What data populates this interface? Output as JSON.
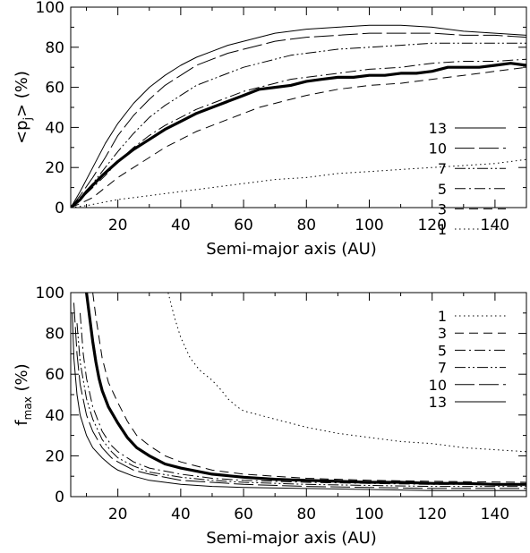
{
  "chart_data": [
    {
      "type": "line",
      "xlabel": "Semi-major axis (AU)",
      "ylabel_main": "<p",
      "ylabel_sub": "j",
      "ylabel_tail": "> (%)",
      "xlim": [
        5,
        150
      ],
      "ylim": [
        0,
        100
      ],
      "xticks": [
        20,
        40,
        60,
        80,
        100,
        120,
        140
      ],
      "yticks": [
        0,
        20,
        40,
        60,
        80,
        100
      ],
      "legend_position": "right",
      "series": [
        {
          "name": "13",
          "style": "solid",
          "width": 1,
          "x": [
            5,
            8,
            12,
            16,
            20,
            25,
            30,
            35,
            40,
            45,
            50,
            55,
            60,
            65,
            70,
            75,
            80,
            90,
            100,
            110,
            120,
            130,
            140,
            150
          ],
          "y": [
            0,
            8,
            20,
            32,
            42,
            52,
            60,
            66,
            71,
            75,
            78,
            81,
            83,
            85,
            87,
            88,
            89,
            90,
            91,
            91,
            90,
            88,
            87,
            86
          ]
        },
        {
          "name": "10",
          "style": "longdash",
          "width": 1,
          "x": [
            5,
            8,
            12,
            16,
            20,
            25,
            30,
            35,
            40,
            45,
            50,
            55,
            60,
            65,
            70,
            75,
            80,
            90,
            100,
            110,
            120,
            130,
            140,
            150
          ],
          "y": [
            0,
            6,
            15,
            25,
            36,
            46,
            54,
            61,
            66,
            71,
            74,
            77,
            79,
            81,
            83,
            84,
            85,
            86,
            87,
            87,
            87,
            86,
            86,
            85
          ]
        },
        {
          "name": "7",
          "style": "dashdotdot",
          "width": 1,
          "x": [
            5,
            8,
            12,
            16,
            20,
            25,
            30,
            35,
            40,
            45,
            50,
            55,
            60,
            65,
            70,
            75,
            80,
            90,
            100,
            110,
            120,
            130,
            140,
            150
          ],
          "y": [
            0,
            5,
            12,
            20,
            28,
            37,
            45,
            51,
            56,
            61,
            64,
            67,
            70,
            72,
            74,
            76,
            77,
            79,
            80,
            81,
            82,
            82,
            82,
            82
          ]
        },
        {
          "name": "5",
          "style": "dashdot",
          "width": 1,
          "x": [
            5,
            8,
            12,
            16,
            20,
            25,
            30,
            35,
            40,
            45,
            50,
            55,
            60,
            65,
            70,
            75,
            80,
            90,
            100,
            110,
            120,
            130,
            140,
            150
          ],
          "y": [
            0,
            4,
            10,
            16,
            23,
            30,
            36,
            41,
            45,
            49,
            52,
            55,
            58,
            60,
            62,
            64,
            65,
            67,
            69,
            70,
            72,
            73,
            73,
            74
          ]
        },
        {
          "name": "3",
          "style": "dash",
          "width": 1,
          "x": [
            5,
            8,
            12,
            16,
            20,
            25,
            30,
            35,
            40,
            45,
            50,
            55,
            60,
            65,
            70,
            75,
            80,
            90,
            100,
            110,
            120,
            130,
            140,
            150
          ],
          "y": [
            0,
            2,
            5,
            10,
            15,
            20,
            25,
            30,
            34,
            38,
            41,
            44,
            47,
            50,
            52,
            54,
            56,
            59,
            61,
            62,
            64,
            66,
            68,
            70
          ]
        },
        {
          "name": "1",
          "style": "dot",
          "width": 1,
          "x": [
            5,
            10,
            20,
            30,
            40,
            50,
            60,
            70,
            80,
            90,
            100,
            110,
            120,
            130,
            140,
            150
          ],
          "y": [
            0,
            1,
            4,
            6,
            8,
            10,
            12,
            14,
            15,
            17,
            18,
            19,
            20,
            21,
            22,
            24
          ]
        },
        {
          "name": "",
          "style": "solid",
          "width": 3.2,
          "x": [
            5,
            8,
            10,
            15,
            20,
            25,
            30,
            35,
            40,
            45,
            50,
            55,
            60,
            65,
            70,
            75,
            80,
            85,
            90,
            95,
            100,
            105,
            110,
            115,
            120,
            125,
            130,
            135,
            140,
            145,
            150
          ],
          "y": [
            0,
            4,
            8,
            16,
            23,
            29,
            34,
            39,
            43,
            47,
            50,
            53,
            56,
            59,
            60,
            61,
            63,
            64,
            65,
            65,
            66,
            66,
            67,
            67,
            68,
            70,
            70,
            70,
            71,
            72,
            71
          ]
        }
      ]
    },
    {
      "type": "line",
      "xlabel": "Semi-major axis (AU)",
      "ylabel_main": "f",
      "ylabel_sub": "max",
      "ylabel_tail": " (%)",
      "xlim": [
        5,
        150
      ],
      "ylim": [
        0,
        100
      ],
      "xticks": [
        20,
        40,
        60,
        80,
        100,
        120,
        140
      ],
      "yticks": [
        0,
        20,
        40,
        60,
        80,
        100
      ],
      "legend_position": "top-right",
      "series": [
        {
          "name": "1",
          "style": "dot",
          "width": 1,
          "x": [
            36,
            38,
            40,
            43,
            46,
            50,
            53,
            55,
            58,
            60,
            65,
            70,
            80,
            90,
            100,
            110,
            120,
            130,
            140,
            150
          ],
          "y": [
            100,
            88,
            78,
            68,
            62,
            57,
            52,
            48,
            44,
            42,
            40,
            38,
            34,
            31,
            29,
            27,
            26,
            24,
            23,
            22
          ]
        },
        {
          "name": "3",
          "style": "dash",
          "width": 1,
          "x": [
            12,
            13,
            14,
            15,
            17,
            20,
            23,
            26,
            30,
            35,
            40,
            50,
            60,
            70,
            80,
            100,
            120,
            150
          ],
          "y": [
            100,
            88,
            78,
            68,
            56,
            46,
            37,
            30,
            25,
            20,
            17,
            13,
            11,
            10,
            9,
            8,
            7.5,
            7
          ]
        },
        {
          "name": "5",
          "style": "dashdot",
          "width": 1,
          "x": [
            8,
            9,
            10,
            12,
            15,
            18,
            20,
            25,
            30,
            40,
            50,
            60,
            80,
            100,
            120,
            150
          ],
          "y": [
            90,
            70,
            58,
            44,
            32,
            25,
            22,
            17,
            14,
            11,
            9,
            8,
            7,
            6.5,
            6,
            6
          ]
        },
        {
          "name": "7",
          "style": "dashdotdot",
          "width": 1,
          "x": [
            7,
            8,
            10,
            12,
            15,
            18,
            20,
            25,
            30,
            40,
            50,
            60,
            80,
            100,
            120,
            150
          ],
          "y": [
            85,
            66,
            48,
            38,
            28,
            22,
            19,
            15,
            12,
            9.5,
            8,
            7,
            6,
            5.5,
            5,
            5
          ]
        },
        {
          "name": "10",
          "style": "longdash",
          "width": 1,
          "x": [
            6,
            7,
            8,
            10,
            12,
            15,
            18,
            20,
            25,
            30,
            40,
            50,
            60,
            80,
            100,
            120,
            150
          ],
          "y": [
            95,
            70,
            55,
            40,
            32,
            24,
            19,
            17,
            13,
            11,
            8,
            7,
            6,
            5,
            4.5,
            4,
            4
          ]
        },
        {
          "name": "13",
          "style": "solid",
          "width": 1,
          "x": [
            5.5,
            6,
            7,
            8,
            10,
            12,
            15,
            18,
            20,
            25,
            30,
            40,
            50,
            60,
            80,
            100,
            120,
            150
          ],
          "y": [
            90,
            68,
            50,
            40,
            30,
            24,
            19,
            15,
            13,
            10,
            8,
            6,
            5,
            4.5,
            4,
            3.5,
            3,
            3
          ]
        },
        {
          "name": "",
          "style": "solid",
          "width": 3.2,
          "x": [
            10,
            11,
            12,
            13,
            14,
            15,
            17,
            20,
            23,
            26,
            30,
            35,
            40,
            50,
            60,
            70,
            80,
            90,
            100,
            110,
            120,
            130,
            140,
            150
          ],
          "y": [
            100,
            88,
            76,
            66,
            58,
            52,
            44,
            36,
            29,
            24,
            20,
            16,
            14,
            11,
            9.5,
            8.5,
            8,
            7.5,
            7,
            7,
            6.5,
            6.5,
            6,
            6
          ]
        }
      ]
    }
  ]
}
